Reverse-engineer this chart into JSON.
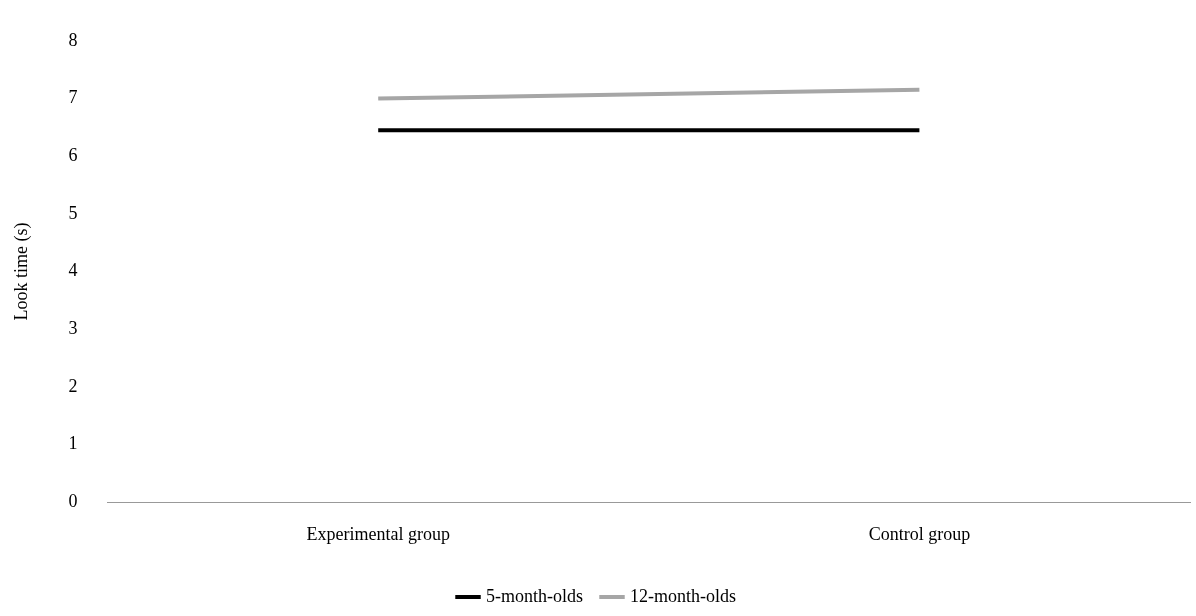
{
  "chart_data": {
    "type": "line",
    "ylabel": "Look time (s)",
    "categories": [
      "Experimental group",
      "Control group"
    ],
    "series": [
      {
        "name": "5-month-olds",
        "color": "#000000",
        "values": [
          6.45,
          6.45
        ]
      },
      {
        "name": "12-month-olds",
        "color": "#a6a6a6",
        "values": [
          7.0,
          7.15
        ]
      }
    ],
    "ylim": [
      0,
      8
    ],
    "yticks": [
      0,
      1,
      2,
      3,
      4,
      5,
      6,
      7,
      8
    ],
    "grid": false,
    "legend": "bottom",
    "marker": "none",
    "line_style": "solid"
  }
}
